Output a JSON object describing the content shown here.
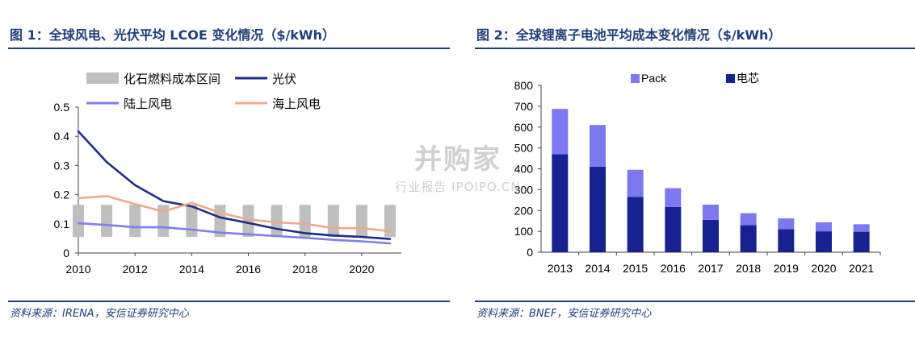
{
  "figure1": {
    "title": "图 1：全球风电、光伏平均 LCOE 变化情况（$/kWh）",
    "source": "资料来源：IRENA，安信证券研究中心",
    "chart_data": {
      "type": "line",
      "x": [
        2010,
        2011,
        2012,
        2013,
        2014,
        2015,
        2016,
        2017,
        2018,
        2019,
        2020,
        2021
      ],
      "x_ticks": [
        "2010",
        "2012",
        "2014",
        "2016",
        "2018",
        "2020"
      ],
      "y_ticks": [
        "0",
        "0.1",
        "0.2",
        "0.3",
        "0.4",
        "0.5"
      ],
      "ylim": [
        0,
        0.5
      ],
      "band": {
        "name": "化石燃料成本区间",
        "low": 0.055,
        "high": 0.165,
        "color": "#bfbfbf"
      },
      "series": [
        {
          "name": "光伏",
          "color": "#1f2d86",
          "values": [
            0.417,
            0.312,
            0.233,
            0.178,
            0.16,
            0.122,
            0.103,
            0.083,
            0.068,
            0.06,
            0.055,
            0.048
          ]
        },
        {
          "name": "陆上风电",
          "color": "#7e7ef0",
          "values": [
            0.102,
            0.096,
            0.088,
            0.088,
            0.08,
            0.07,
            0.064,
            0.058,
            0.052,
            0.045,
            0.04,
            0.033
          ]
        },
        {
          "name": "海上风电",
          "color": "#f0a88a",
          "values": [
            0.188,
            0.195,
            0.168,
            0.142,
            0.172,
            0.138,
            0.115,
            0.105,
            0.1,
            0.085,
            0.085,
            0.075
          ]
        }
      ]
    }
  },
  "figure2": {
    "title": "图 2：全球锂离子电池平均成本变化情况（$/kWh）",
    "source": "资料来源：BNEF，安信证券研究中心",
    "chart_data": {
      "type": "bar",
      "stacked": true,
      "categories": [
        "2013",
        "2014",
        "2015",
        "2016",
        "2017",
        "2018",
        "2019",
        "2020",
        "2021"
      ],
      "y_ticks": [
        "0",
        "100",
        "200",
        "300",
        "400",
        "500",
        "600",
        "700",
        "800"
      ],
      "ylim": [
        0,
        800
      ],
      "series": [
        {
          "name": "电芯",
          "color": "#15228f",
          "values": [
            470,
            410,
            265,
            217,
            155,
            130,
            110,
            100,
            98
          ]
        },
        {
          "name": "Pack",
          "color": "#7c78f0",
          "values": [
            217,
            200,
            130,
            90,
            73,
            57,
            52,
            43,
            36
          ]
        }
      ]
    }
  },
  "watermark": {
    "main": "并购家",
    "sub": "行业报告 IPOIPO.CN"
  }
}
